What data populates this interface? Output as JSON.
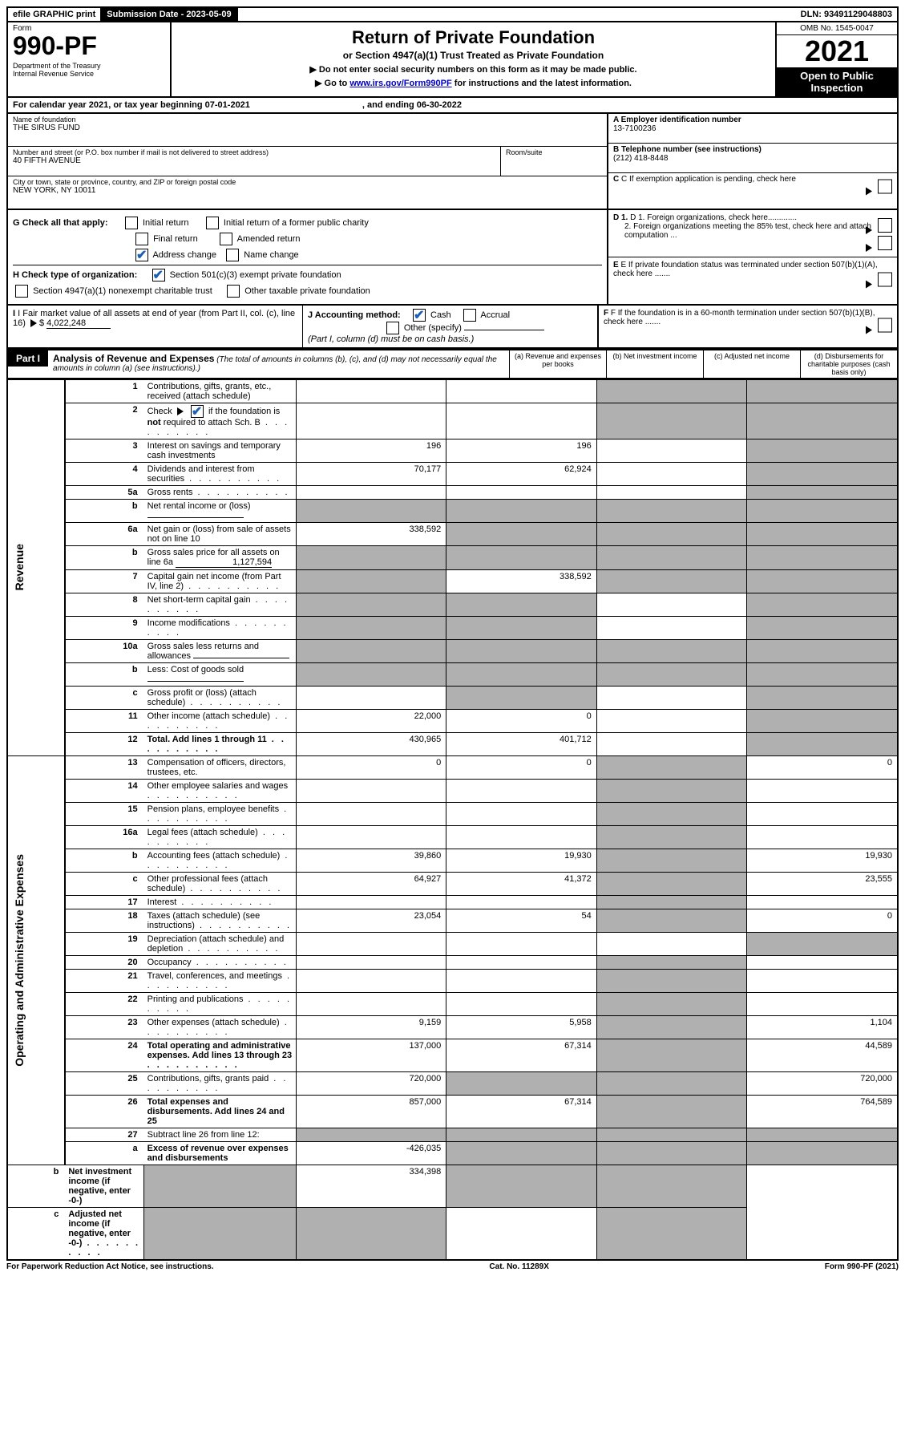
{
  "top": {
    "efile": "efile GRAPHIC print",
    "sub_date_label": "Submission Date - 2023-05-09",
    "dln": "DLN: 93491129048803"
  },
  "header": {
    "form_label": "Form",
    "form_num": "990-PF",
    "dept": "Department of the Treasury\nInternal Revenue Service",
    "title": "Return of Private Foundation",
    "subtitle": "or Section 4947(a)(1) Trust Treated as Private Foundation",
    "instr1": "▶ Do not enter social security numbers on this form as it may be made public.",
    "instr2_a": "▶ Go to ",
    "instr2_link": "www.irs.gov/Form990PF",
    "instr2_b": " for instructions and the latest information.",
    "omb": "OMB No. 1545-0047",
    "year": "2021",
    "open": "Open to Public Inspection"
  },
  "cal": {
    "text_a": "For calendar year 2021, or tax year beginning 07-01-2021",
    "text_b": ", and ending 06-30-2022"
  },
  "id": {
    "name_label": "Name of foundation",
    "name_val": "THE SIRUS FUND",
    "addr_label": "Number and street (or P.O. box number if mail is not delivered to street address)",
    "addr_val": "40 FIFTH AVENUE",
    "room_label": "Room/suite",
    "city_label": "City or town, state or province, country, and ZIP or foreign postal code",
    "city_val": "NEW YORK, NY  10011",
    "a_label": "A Employer identification number",
    "a_val": "13-7100236",
    "b_label": "B Telephone number (see instructions)",
    "b_val": "(212) 418-8448",
    "c_label": "C If exemption application is pending, check here"
  },
  "g": {
    "label": "G Check all that apply:",
    "initial": "Initial return",
    "initial_former": "Initial return of a former public charity",
    "final": "Final return",
    "amended": "Amended return",
    "address": "Address change",
    "name": "Name change"
  },
  "h": {
    "label": "H Check type of organization:",
    "s501": "Section 501(c)(3) exempt private foundation",
    "s4947": "Section 4947(a)(1) nonexempt charitable trust",
    "other": "Other taxable private foundation"
  },
  "i": {
    "label": "I Fair market value of all assets at end of year (from Part II, col. (c), line 16)",
    "val": "4,022,248"
  },
  "j": {
    "label": "J Accounting method:",
    "cash": "Cash",
    "accrual": "Accrual",
    "other": "Other (specify)",
    "note": "(Part I, column (d) must be on cash basis.)"
  },
  "d": {
    "d1": "D 1. Foreign organizations, check here.............",
    "d2": "2. Foreign organizations meeting the 85% test, check here and attach computation ..."
  },
  "e": {
    "label": "E  If private foundation status was terminated under section 507(b)(1)(A), check here ......."
  },
  "f": {
    "label": "F  If the foundation is in a 60-month termination under section 507(b)(1)(B), check here ......."
  },
  "part1": {
    "label": "Part I",
    "title": "Analysis of Revenue and Expenses",
    "note": "(The total of amounts in columns (b), (c), and (d) may not necessarily equal the amounts in column (a) (see instructions).)",
    "col_a": "(a)  Revenue and expenses per books",
    "col_b": "(b)  Net investment income",
    "col_c": "(c)  Adjusted net income",
    "col_d": "(d)  Disbursements for charitable purposes (cash basis only)"
  },
  "sides": {
    "rev": "Revenue",
    "exp": "Operating and Administrative Expenses"
  },
  "rows": [
    {
      "n": "1",
      "d": "Contributions, gifts, grants, etc., received (attach schedule)",
      "a": "",
      "b": "",
      "c": "g",
      "dd": "g"
    },
    {
      "n": "2",
      "d": "Check ▶ ☑ if the foundation is not required to attach Sch. B",
      "a": "",
      "b": "",
      "c": "g",
      "dd": "g",
      "checked": true,
      "dots": true
    },
    {
      "n": "3",
      "d": "Interest on savings and temporary cash investments",
      "a": "196",
      "b": "196",
      "c": "",
      "dd": "g"
    },
    {
      "n": "4",
      "d": "Dividends and interest from securities",
      "a": "70,177",
      "b": "62,924",
      "c": "",
      "dd": "g",
      "dots": true
    },
    {
      "n": "5a",
      "d": "Gross rents",
      "a": "",
      "b": "",
      "c": "",
      "dd": "g",
      "dots": true
    },
    {
      "n": "b",
      "d": "Net rental income or (loss)",
      "a": "g",
      "b": "g",
      "c": "g",
      "dd": "g",
      "inline": true
    },
    {
      "n": "6a",
      "d": "Net gain or (loss) from sale of assets not on line 10",
      "a": "338,592",
      "b": "g",
      "c": "g",
      "dd": "g"
    },
    {
      "n": "b",
      "d": "Gross sales price for all assets on line 6a",
      "a": "g",
      "b": "g",
      "c": "g",
      "dd": "g",
      "inline": true,
      "inlineval": "1,127,594"
    },
    {
      "n": "7",
      "d": "Capital gain net income (from Part IV, line 2)",
      "a": "g",
      "b": "338,592",
      "c": "g",
      "dd": "g",
      "dots": true
    },
    {
      "n": "8",
      "d": "Net short-term capital gain",
      "a": "g",
      "b": "g",
      "c": "",
      "dd": "g",
      "dots": true
    },
    {
      "n": "9",
      "d": "Income modifications",
      "a": "g",
      "b": "g",
      "c": "",
      "dd": "g",
      "dots": true
    },
    {
      "n": "10a",
      "d": "Gross sales less returns and allowances",
      "a": "g",
      "b": "g",
      "c": "g",
      "dd": "g",
      "inline": true
    },
    {
      "n": "b",
      "d": "Less: Cost of goods sold",
      "a": "g",
      "b": "g",
      "c": "g",
      "dd": "g",
      "inline": true,
      "dots": true
    },
    {
      "n": "c",
      "d": "Gross profit or (loss) (attach schedule)",
      "a": "",
      "b": "g",
      "c": "",
      "dd": "g",
      "dots": true
    },
    {
      "n": "11",
      "d": "Other income (attach schedule)",
      "a": "22,000",
      "b": "0",
      "c": "",
      "dd": "g",
      "dots": true
    },
    {
      "n": "12",
      "d": "Total. Add lines 1 through 11",
      "a": "430,965",
      "b": "401,712",
      "c": "",
      "dd": "g",
      "bold": true,
      "dots": true
    },
    {
      "n": "13",
      "d": "Compensation of officers, directors, trustees, etc.",
      "a": "0",
      "b": "0",
      "c": "g",
      "dd": "0"
    },
    {
      "n": "14",
      "d": "Other employee salaries and wages",
      "a": "",
      "b": "",
      "c": "g",
      "dd": "",
      "dots": true
    },
    {
      "n": "15",
      "d": "Pension plans, employee benefits",
      "a": "",
      "b": "",
      "c": "g",
      "dd": "",
      "dots": true
    },
    {
      "n": "16a",
      "d": "Legal fees (attach schedule)",
      "a": "",
      "b": "",
      "c": "g",
      "dd": "",
      "dots": true
    },
    {
      "n": "b",
      "d": "Accounting fees (attach schedule)",
      "a": "39,860",
      "b": "19,930",
      "c": "g",
      "dd": "19,930",
      "dots": true
    },
    {
      "n": "c",
      "d": "Other professional fees (attach schedule)",
      "a": "64,927",
      "b": "41,372",
      "c": "g",
      "dd": "23,555",
      "dots": true
    },
    {
      "n": "17",
      "d": "Interest",
      "a": "",
      "b": "",
      "c": "g",
      "dd": "",
      "dots": true
    },
    {
      "n": "18",
      "d": "Taxes (attach schedule) (see instructions)",
      "a": "23,054",
      "b": "54",
      "c": "g",
      "dd": "0",
      "dots": true
    },
    {
      "n": "19",
      "d": "Depreciation (attach schedule) and depletion",
      "a": "",
      "b": "",
      "c": "",
      "dd": "g",
      "dots": true
    },
    {
      "n": "20",
      "d": "Occupancy",
      "a": "",
      "b": "",
      "c": "g",
      "dd": "",
      "dots": true
    },
    {
      "n": "21",
      "d": "Travel, conferences, and meetings",
      "a": "",
      "b": "",
      "c": "g",
      "dd": "",
      "dots": true
    },
    {
      "n": "22",
      "d": "Printing and publications",
      "a": "",
      "b": "",
      "c": "g",
      "dd": "",
      "dots": true
    },
    {
      "n": "23",
      "d": "Other expenses (attach schedule)",
      "a": "9,159",
      "b": "5,958",
      "c": "g",
      "dd": "1,104",
      "dots": true
    },
    {
      "n": "24",
      "d": "Total operating and administrative expenses. Add lines 13 through 23",
      "a": "137,000",
      "b": "67,314",
      "c": "g",
      "dd": "44,589",
      "bold": true,
      "dots": true
    },
    {
      "n": "25",
      "d": "Contributions, gifts, grants paid",
      "a": "720,000",
      "b": "g",
      "c": "g",
      "dd": "720,000",
      "dots": true
    },
    {
      "n": "26",
      "d": "Total expenses and disbursements. Add lines 24 and 25",
      "a": "857,000",
      "b": "67,314",
      "c": "g",
      "dd": "764,589",
      "bold": true
    },
    {
      "n": "27",
      "d": "Subtract line 26 from line 12:",
      "a": "g",
      "b": "g",
      "c": "g",
      "dd": "g"
    },
    {
      "n": "a",
      "d": "Excess of revenue over expenses and disbursements",
      "a": "-426,035",
      "b": "g",
      "c": "g",
      "dd": "g",
      "bold": true
    },
    {
      "n": "b",
      "d": "Net investment income (if negative, enter -0-)",
      "a": "g",
      "b": "334,398",
      "c": "g",
      "dd": "g",
      "bold": true
    },
    {
      "n": "c",
      "d": "Adjusted net income (if negative, enter -0-)",
      "a": "g",
      "b": "g",
      "c": "",
      "dd": "g",
      "bold": true,
      "dots": true
    }
  ],
  "footer": {
    "left": "For Paperwork Reduction Act Notice, see instructions.",
    "mid": "Cat. No. 11289X",
    "right": "Form 990-PF (2021)"
  }
}
